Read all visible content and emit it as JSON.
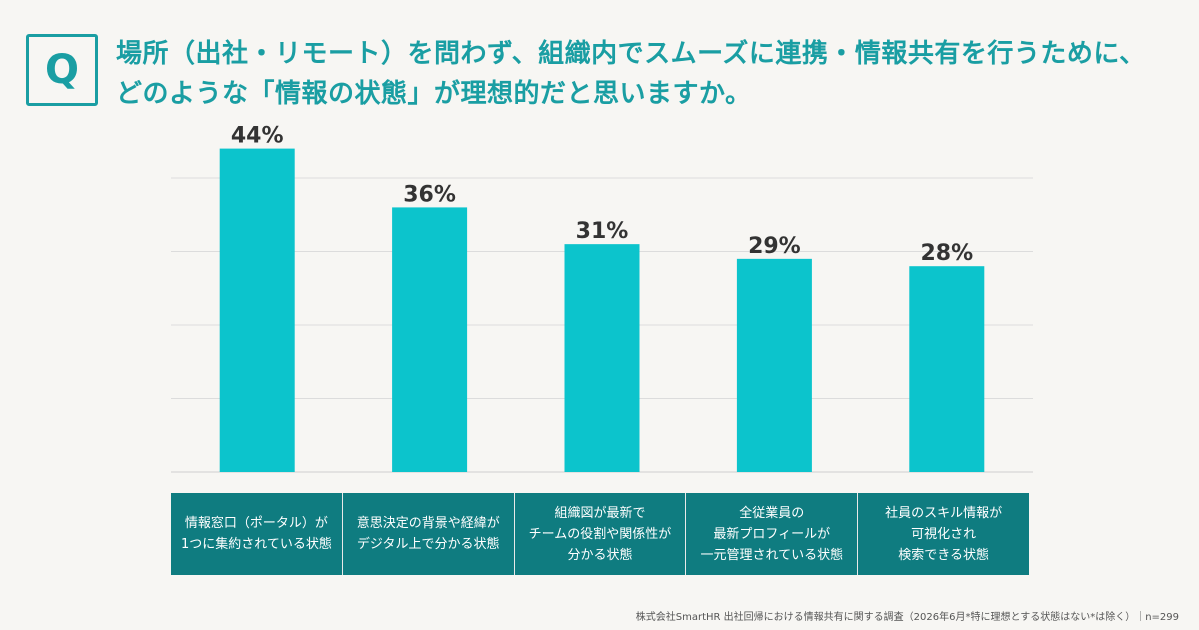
{
  "question": {
    "badge": "Q",
    "title_line1": "場所（出社・リモート）を問わず、組織内でスムーズに連携・情報共有を行うために、",
    "title_line2": "どのような「情報の状態」が理想的だと思いますか。"
  },
  "chart_data": {
    "type": "bar",
    "categories": [
      "情報窓口（ポータル）が\n1つに集約されている状態",
      "意思決定の背景や経緯が\nデジタル上で分かる状態",
      "組織図が最新で\nチームの役割や関係性が\n分かる状態",
      "全従業員の\n最新プロフィールが\n一元管理されている状態",
      "社員のスキル情報が\n可視化され\n検索できる状態"
    ],
    "values": [
      44,
      36,
      31,
      29,
      28
    ],
    "value_labels": [
      "44%",
      "36%",
      "31%",
      "29%",
      "28%"
    ],
    "ylim": [
      0,
      40
    ],
    "grid": true,
    "bar_color": "#0cc4cc",
    "category_bg": "#0f7c80"
  },
  "footnote": "株式会社SmartHR 出社回帰における情報共有に関する調査（2026年6月*特に理想とする状態はない*は除く）｜n=299",
  "colors": {
    "accent": "#1a9ea3",
    "background": "#f7f6f3"
  }
}
